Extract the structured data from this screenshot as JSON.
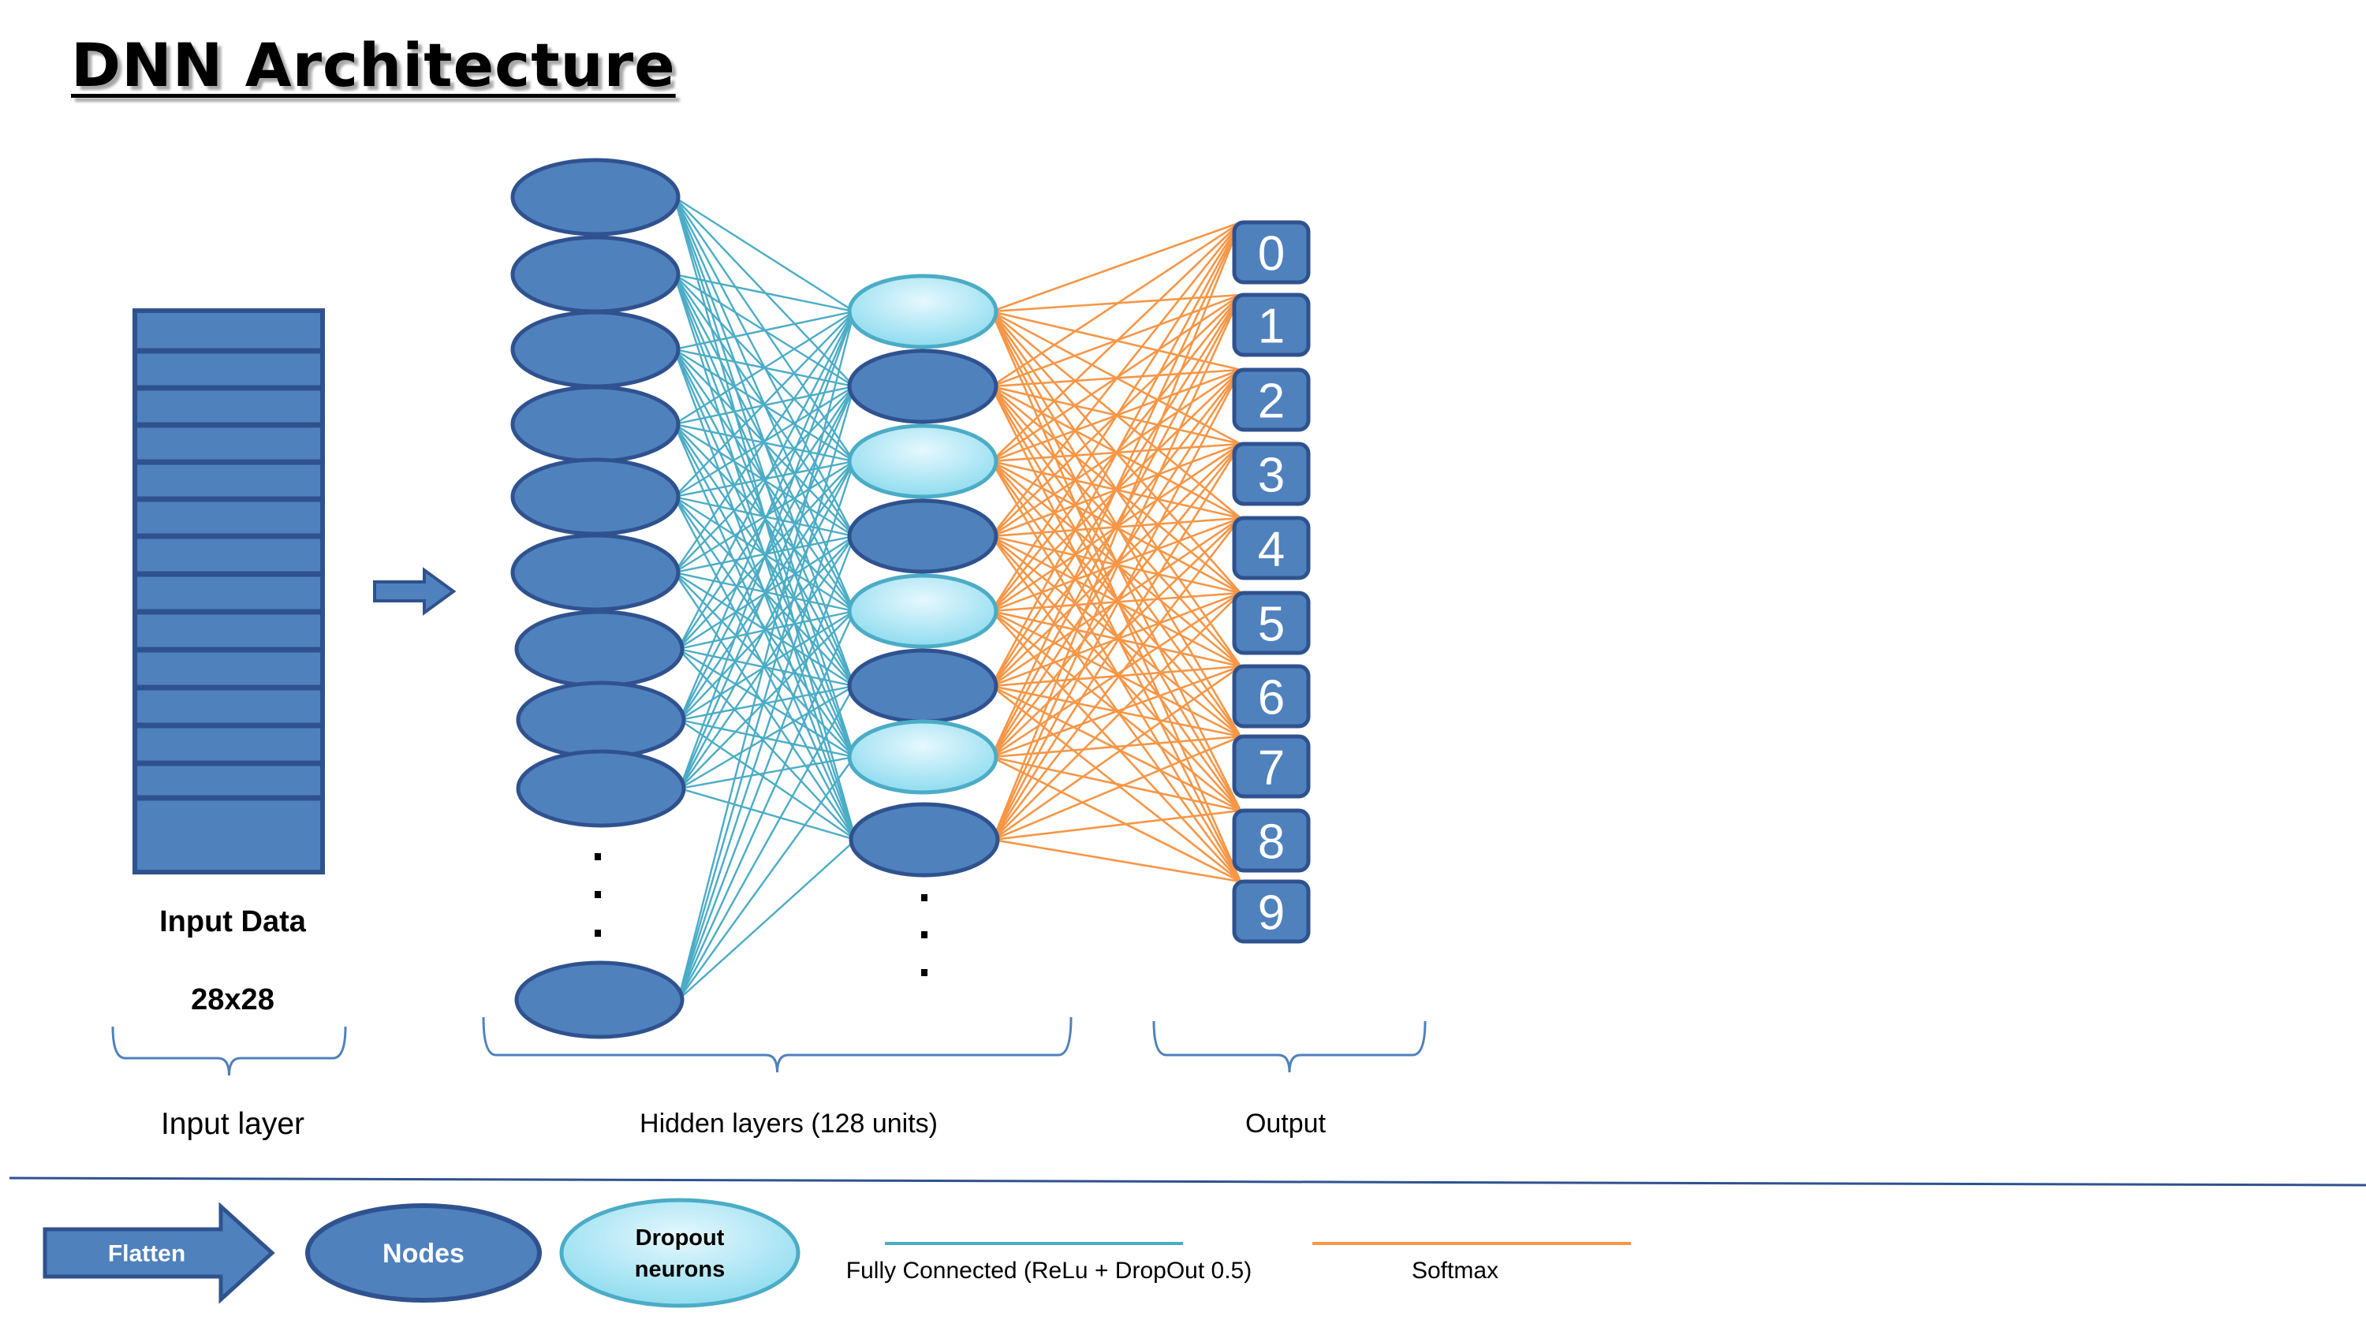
{
  "title": "DNN Architecture",
  "input": {
    "label": "Input Data",
    "size": "28x28"
  },
  "outputs": [
    "0",
    "1",
    "2",
    "3",
    "4",
    "5",
    "6",
    "7",
    "8",
    "9"
  ],
  "sections": {
    "input_layer": "Input layer",
    "hidden_layers": "Hidden layers (128 units)",
    "output": "Output"
  },
  "legend": {
    "flatten": "Flatten",
    "nodes": "Nodes",
    "dropout_line1": "Dropout",
    "dropout_line2": "neurons",
    "fully_connected": "Fully Connected (ReLu + DropOut 0.5)",
    "softmax": "Softmax"
  },
  "colors": {
    "node_fill": "#4f81bd",
    "node_stroke": "#2f528f",
    "dropout_fill_light": "#e6f8fd",
    "dropout_fill_dark": "#8fdcef",
    "fully_connected_line": "#4bacc6",
    "softmax_line": "#f79646",
    "output_fill": "#4f81bd",
    "brace": "#4f81bd"
  }
}
